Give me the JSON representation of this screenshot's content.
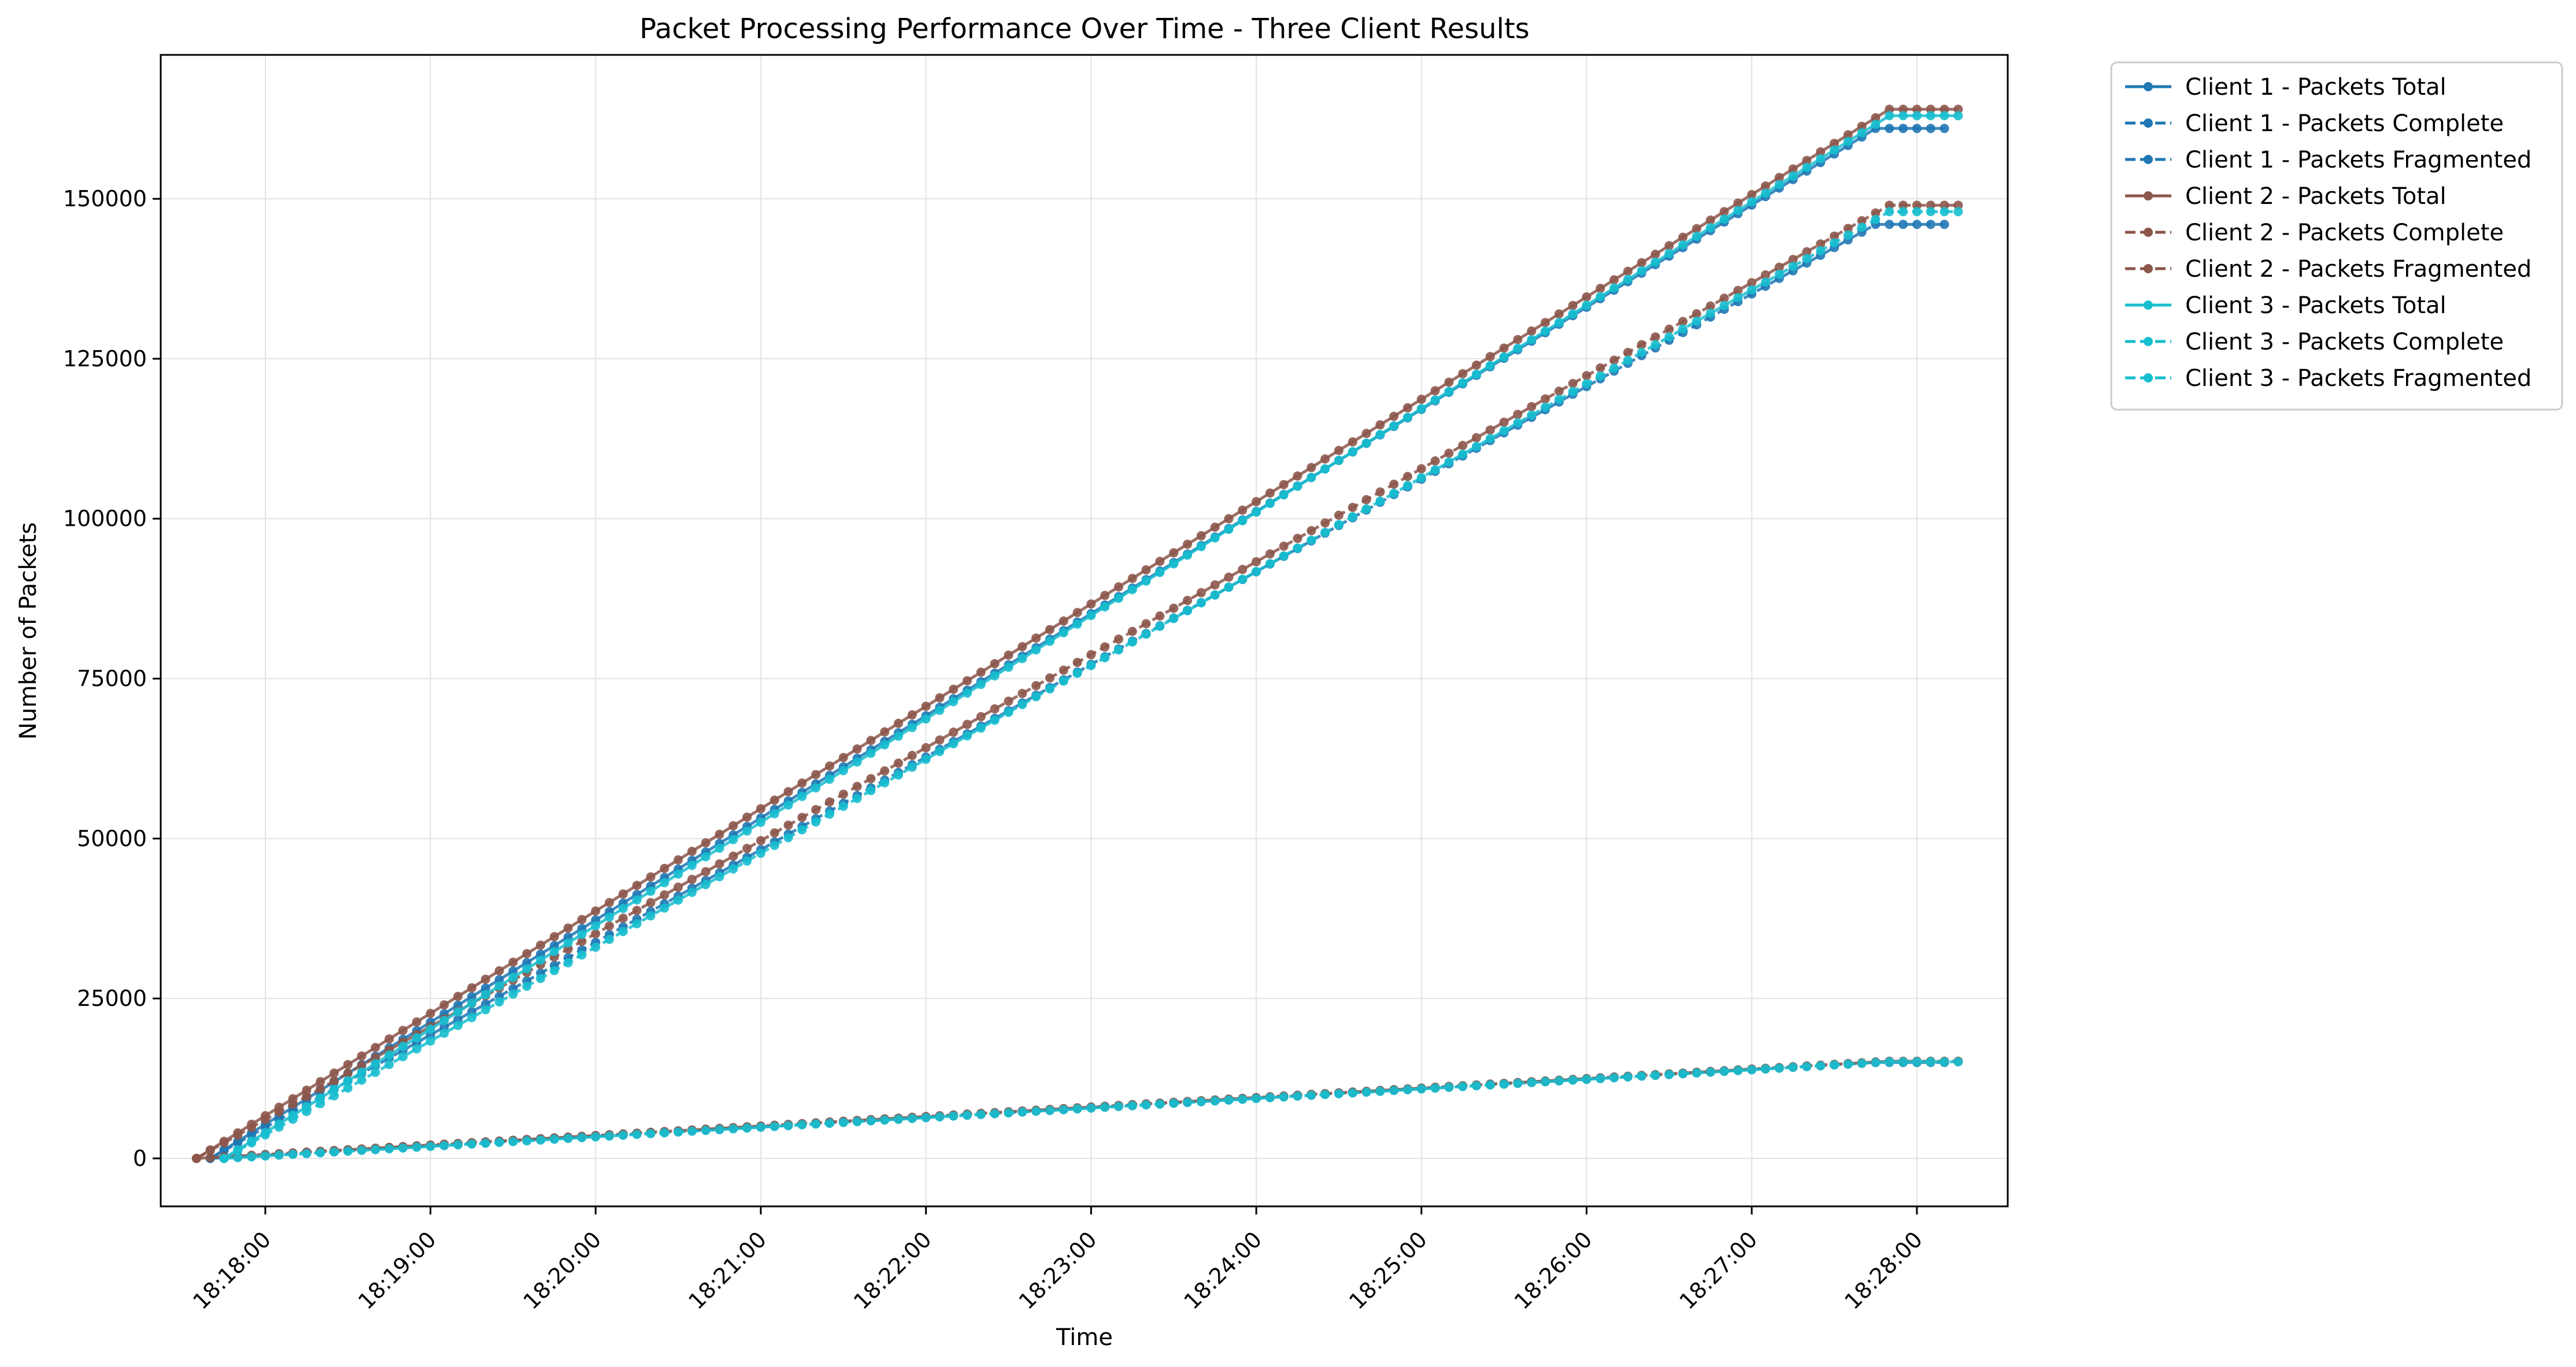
{
  "chart_data": {
    "type": "line",
    "title": "Packet Processing Performance Over Time - Three Client Results",
    "xlabel": "Time",
    "ylabel": "Number of Packets",
    "xlim": [
      "18:17:22",
      "18:28:33"
    ],
    "ylim": [
      -7500,
      172500
    ],
    "x_ticks": [
      "18:18:00",
      "18:19:00",
      "18:20:00",
      "18:21:00",
      "18:22:00",
      "18:23:00",
      "18:24:00",
      "18:25:00",
      "18:26:00",
      "18:27:00",
      "18:28:00"
    ],
    "y_ticks": [
      0,
      25000,
      50000,
      75000,
      100000,
      125000,
      150000
    ],
    "grid": true,
    "legend_position": "outside-top-right",
    "series": [
      {
        "name": "Client 1 - Packets Total",
        "color": "#1f77b4",
        "line_style": "solid",
        "marker": "circle",
        "points": [
          [
            "18:17:40",
            0
          ],
          [
            "18:27:45",
            161000
          ],
          [
            "18:28:10",
            161000
          ]
        ]
      },
      {
        "name": "Client 1 - Packets Complete",
        "color": "#1f77b4",
        "line_style": "dashed",
        "marker": "circle",
        "points": [
          [
            "18:17:40",
            0
          ],
          [
            "18:27:45",
            146000
          ],
          [
            "18:28:10",
            146000
          ]
        ]
      },
      {
        "name": "Client 1 - Packets Fragmented",
        "color": "#1f77b4",
        "line_style": "dashed",
        "marker": "circle",
        "points": [
          [
            "18:17:40",
            0
          ],
          [
            "18:27:45",
            15000
          ],
          [
            "18:28:10",
            15000
          ]
        ]
      },
      {
        "name": "Client 2 - Packets Total",
        "color": "#8c564b",
        "line_style": "solid",
        "marker": "circle",
        "points": [
          [
            "18:17:35",
            0
          ],
          [
            "18:27:50",
            164000
          ],
          [
            "18:28:15",
            164000
          ]
        ]
      },
      {
        "name": "Client 2 - Packets Complete",
        "color": "#8c564b",
        "line_style": "dashed",
        "marker": "circle",
        "points": [
          [
            "18:17:35",
            0
          ],
          [
            "18:27:50",
            149000
          ],
          [
            "18:28:15",
            149000
          ]
        ]
      },
      {
        "name": "Client 2 - Packets Fragmented",
        "color": "#8c564b",
        "line_style": "dashed",
        "marker": "circle",
        "points": [
          [
            "18:17:35",
            0
          ],
          [
            "18:27:50",
            15200
          ],
          [
            "18:28:15",
            15200
          ]
        ]
      },
      {
        "name": "Client 3 - Packets Total",
        "color": "#17becf",
        "line_style": "solid",
        "marker": "circle",
        "points": [
          [
            "18:17:45",
            0
          ],
          [
            "18:27:50",
            163000
          ],
          [
            "18:28:15",
            163000
          ]
        ]
      },
      {
        "name": "Client 3 - Packets Complete",
        "color": "#17becf",
        "line_style": "dashed",
        "marker": "circle",
        "points": [
          [
            "18:17:45",
            0
          ],
          [
            "18:27:50",
            148000
          ],
          [
            "18:28:15",
            148000
          ]
        ]
      },
      {
        "name": "Client 3 - Packets Fragmented",
        "color": "#17becf",
        "line_style": "dashed",
        "marker": "circle",
        "points": [
          [
            "18:17:45",
            0
          ],
          [
            "18:27:50",
            15100
          ],
          [
            "18:28:15",
            15100
          ]
        ]
      }
    ]
  }
}
